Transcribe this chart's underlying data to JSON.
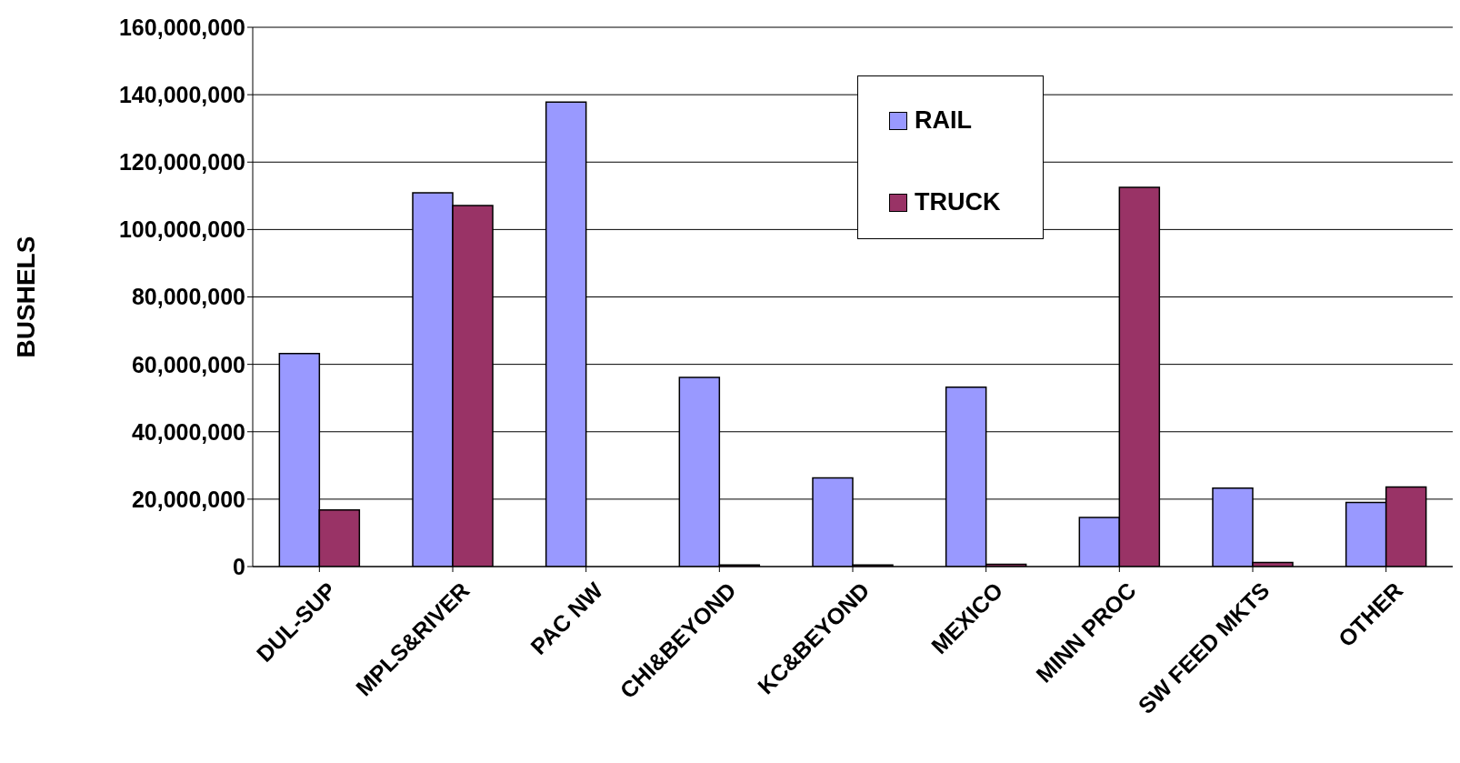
{
  "chart_data": {
    "type": "bar",
    "ylabel": "BUSHELS",
    "categories": [
      "DUL-SUP",
      "MPLS&RIVER",
      "PAC NW",
      "CHI&BEYOND",
      "KC&BEYOND",
      "MEXICO",
      "MINN PROC",
      "SW FEED MKTS",
      "OTHER"
    ],
    "series": [
      {
        "name": "RAIL",
        "color": "#9999ff",
        "values": [
          63200000,
          110900000,
          137800000,
          56100000,
          26300000,
          53200000,
          14600000,
          23300000,
          19000000
        ]
      },
      {
        "name": "TRUCK",
        "color": "#993366",
        "values": [
          16800000,
          107100000,
          0,
          500000,
          500000,
          700000,
          112500000,
          1200000,
          23600000
        ]
      }
    ],
    "ylim": [
      0,
      160000000
    ],
    "yticks": [
      0,
      {
        "value": 20000000,
        "label": "20,000,000"
      },
      {
        "value": 40000000,
        "label": "40,000,000"
      },
      {
        "value": 60000000,
        "label": "60,000,000"
      },
      {
        "value": 80000000,
        "label": "80,000,000"
      },
      {
        "value": 100000000,
        "label": "100,000,000"
      },
      {
        "value": 120000000,
        "label": "120,000,000"
      },
      {
        "value": 140000000,
        "label": "140,000,000"
      },
      {
        "value": 160000000,
        "label": "160,000,000"
      }
    ],
    "grid": "y",
    "legend": "top right"
  }
}
